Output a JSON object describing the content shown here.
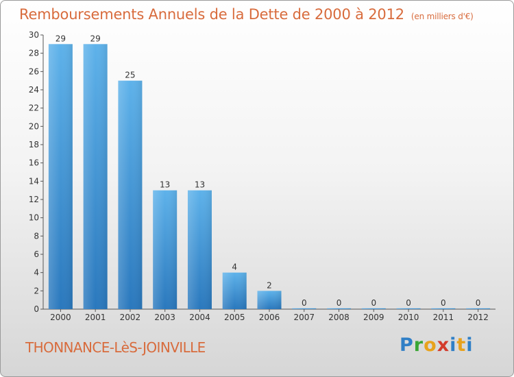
{
  "title": "Remboursements Annuels de la Dette de 2000 à 2012",
  "unit_label": "(en milliers d'€)",
  "commune": "THONNANCE-LèS-JOINVILLE",
  "logo_text": "Proxiti",
  "colors": {
    "title": "#d86b3c",
    "bar_top": "#5eb2ea",
    "bar_bottom": "#2a78bd"
  },
  "chart_data": {
    "type": "bar",
    "title": "Remboursements Annuels de la Dette de 2000 à 2012",
    "categories": [
      "2000",
      "2001",
      "2002",
      "2003",
      "2004",
      "2005",
      "2006",
      "2007",
      "2008",
      "2009",
      "2010",
      "2011",
      "2012"
    ],
    "values": [
      29,
      29,
      25,
      13,
      13,
      4,
      2,
      0,
      0,
      0,
      0,
      0,
      0
    ],
    "ylim": [
      0,
      30
    ],
    "yticks": [
      0,
      2,
      4,
      6,
      8,
      10,
      12,
      14,
      16,
      18,
      20,
      22,
      24,
      26,
      28,
      30
    ],
    "xlabel": "",
    "ylabel": "",
    "grid": false
  }
}
